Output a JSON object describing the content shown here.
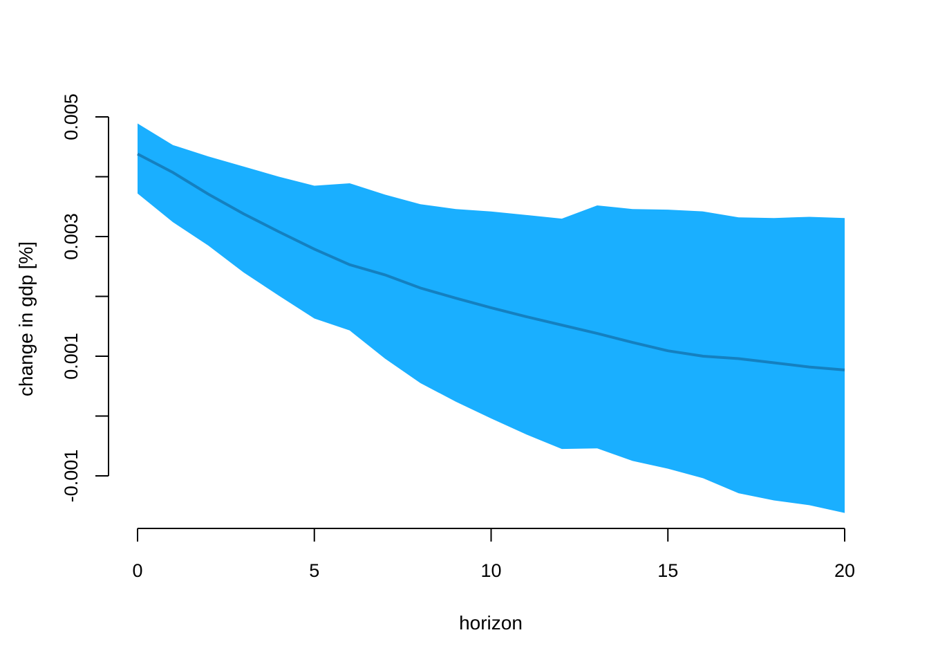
{
  "chart_data": {
    "type": "area",
    "title": "",
    "xlabel": "horizon",
    "ylabel": "change in gdp [%]",
    "xlim": [
      0,
      20
    ],
    "ylim": [
      -0.001,
      0.005
    ],
    "x_ticks": [
      0,
      5,
      10,
      15,
      20
    ],
    "x_tick_labels": [
      "0",
      "5",
      "10",
      "15",
      "20"
    ],
    "y_ticks": [
      -0.001,
      0,
      0.001,
      0.002,
      0.003,
      0.004,
      0.005
    ],
    "y_tick_labels": [
      "-0.001",
      "",
      "0.001",
      "",
      "0.003",
      "",
      "0.005"
    ],
    "grid": false,
    "legend": "none",
    "colors": {
      "band": "#1AAFFF",
      "line": "#1480C0",
      "axis": "#000000"
    },
    "x": [
      0,
      1,
      2,
      3,
      4,
      5,
      6,
      7,
      8,
      9,
      10,
      11,
      12,
      13,
      14,
      15,
      16,
      17,
      18,
      19,
      20
    ],
    "series": [
      {
        "role": "median",
        "values": [
          0.00438,
          0.00407,
          0.00371,
          0.00338,
          0.00308,
          0.00279,
          0.00253,
          0.00236,
          0.00214,
          0.00197,
          0.00181,
          0.00166,
          0.00152,
          0.00138,
          0.00123,
          0.00109,
          0.001,
          0.00096,
          0.00089,
          0.00082,
          0.00077
        ]
      },
      {
        "role": "lower",
        "values": [
          0.00372,
          0.00324,
          0.00285,
          0.0024,
          0.00201,
          0.00163,
          0.00143,
          0.00096,
          0.00055,
          0.00024,
          -4e-05,
          -0.00031,
          -0.00055,
          -0.00054,
          -0.00075,
          -0.00088,
          -0.00104,
          -0.00129,
          -0.00141,
          -0.00149,
          -0.00162
        ]
      },
      {
        "role": "upper",
        "values": [
          0.00489,
          0.00453,
          0.00434,
          0.00417,
          0.004,
          0.00385,
          0.00389,
          0.0037,
          0.00354,
          0.00346,
          0.00342,
          0.00336,
          0.0033,
          0.00352,
          0.00346,
          0.00345,
          0.00342,
          0.00332,
          0.00331,
          0.00333,
          0.00331
        ]
      }
    ]
  }
}
